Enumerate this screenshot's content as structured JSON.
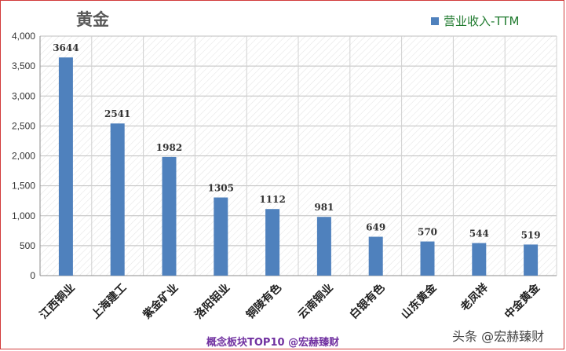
{
  "chart_data": {
    "type": "bar",
    "title": "黄金",
    "categories": [
      "江西铜业",
      "上海建工",
      "紫金矿业",
      "洛阳钼业",
      "铜陵有色",
      "云南铜业",
      "白银有色",
      "山东黄金",
      "老凤祥",
      "中金黄金"
    ],
    "series": [
      {
        "name": "营业收入-TTM",
        "values": [
          3644,
          2541,
          1982,
          1305,
          1112,
          981,
          649,
          570,
          544,
          519
        ]
      }
    ],
    "ylim": [
      0,
      4000
    ],
    "yticks": [
      0,
      500,
      1000,
      1500,
      2000,
      2500,
      3000,
      3500,
      4000
    ],
    "ytick_labels": [
      "0",
      "500",
      "1,000",
      "1,500",
      "2,000",
      "2,500",
      "3,000",
      "3,500",
      "4,000"
    ],
    "legend_position": "top-right",
    "grid": true,
    "bar_color": "#4f81bd"
  },
  "footer": {
    "caption": "概念板块TOP10  @宏赫臻财"
  },
  "watermark": {
    "text": "头条 @宏赫臻财"
  }
}
